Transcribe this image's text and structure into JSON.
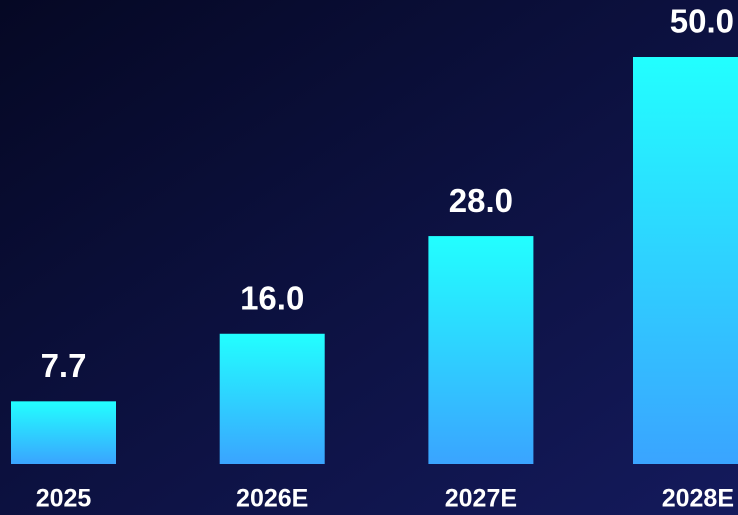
{
  "chart_data": {
    "type": "bar",
    "categories": [
      "2025",
      "2026E",
      "2027E",
      "2028E"
    ],
    "values": [
      7.7,
      16.0,
      28.0,
      50.0
    ],
    "value_labels": [
      "7.7",
      "16.0",
      "28.0",
      "50.0"
    ],
    "gradient": [
      "#22ffff",
      "#3aa4ff"
    ]
  }
}
